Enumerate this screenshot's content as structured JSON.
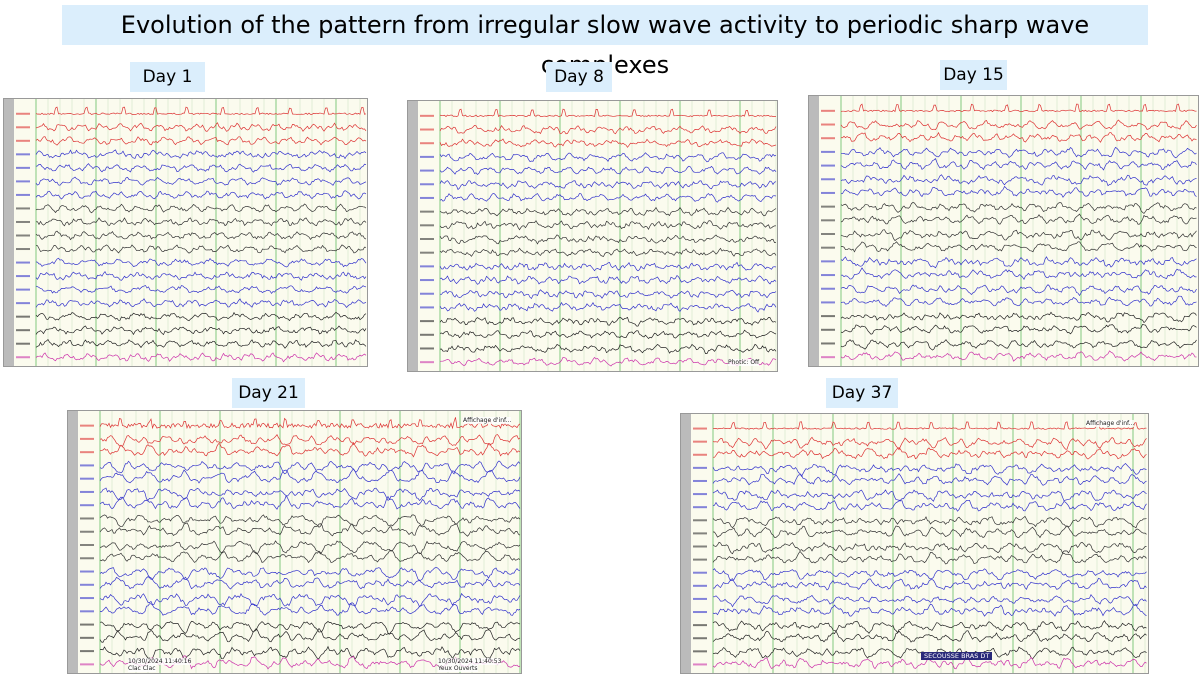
{
  "header": {
    "title": "Evolution of the pattern from irregular slow wave activity to periodic sharp wave complexes"
  },
  "panels": [
    {
      "label": "Day 1"
    },
    {
      "label": "Day 8",
      "annotations": [
        "Photic: Off"
      ]
    },
    {
      "label": "Day 15"
    },
    {
      "label": "Day 21",
      "annotations": [
        "Affichage d'inf...",
        "10/30/2024 11:40:16",
        "Clac Clac",
        "10/30/2024 11:40:53",
        "Yeux Ouverts"
      ]
    },
    {
      "label": "Day 37",
      "annotations": [
        "Affichage d'inf...",
        "SECOUSSE BRAS DT"
      ]
    }
  ]
}
